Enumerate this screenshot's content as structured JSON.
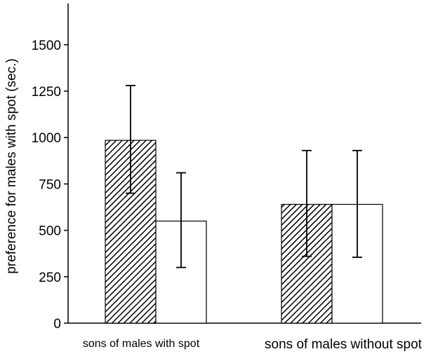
{
  "chart_data": {
    "type": "bar",
    "title": "",
    "xlabel": "",
    "ylabel": "preference for males with spot (sec.)",
    "ylim": [
      0,
      1700
    ],
    "yticks": [
      0,
      250,
      500,
      750,
      1000,
      1250,
      1500
    ],
    "grid": false,
    "legend": "none",
    "categories": [
      "sons of males with spot",
      "sons of males without spot"
    ],
    "series": [
      {
        "pattern": "hatched",
        "values": [
          985,
          640
        ],
        "error": [
          [
            700,
            1280
          ],
          [
            360,
            930
          ]
        ]
      },
      {
        "pattern": "open",
        "values": [
          550,
          640
        ],
        "error": [
          [
            300,
            810
          ],
          [
            355,
            930
          ]
        ]
      }
    ]
  }
}
